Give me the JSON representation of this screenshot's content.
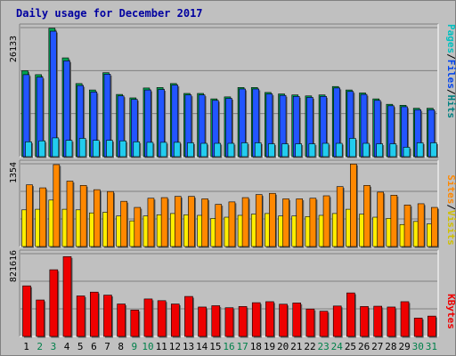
{
  "title": "Daily usage for December 2017",
  "colors": {
    "pages": "#0044ee",
    "files": "#2255ff",
    "hits": "#22ccee",
    "sites": "#ff8800",
    "visits": "#ffee00",
    "kbytes": "#ee0000",
    "weekend_label": "#00804a",
    "weekday_label": "#000000"
  },
  "legend": {
    "top": [
      {
        "text": "Hits",
        "color": "#008080"
      },
      {
        "text": "/",
        "color": "#000000"
      },
      {
        "text": "Files",
        "color": "#0044ee"
      },
      {
        "text": "/",
        "color": "#000000"
      },
      {
        "text": "Pages",
        "color": "#00c0c0"
      }
    ],
    "middle": [
      {
        "text": "Visits",
        "color": "#d0c000"
      },
      {
        "text": "/",
        "color": "#000000"
      },
      {
        "text": "Sites",
        "color": "#ff8800"
      }
    ],
    "bottom": [
      {
        "text": "KBytes",
        "color": "#ee0000"
      }
    ]
  },
  "chart_data": [
    {
      "type": "bar",
      "panel": "hits-files-pages",
      "y_max_label": "26133",
      "ylim": [
        0,
        26133
      ],
      "categories": [
        "1",
        "2",
        "3",
        "4",
        "5",
        "6",
        "7",
        "8",
        "9",
        "10",
        "11",
        "12",
        "13",
        "14",
        "15",
        "16",
        "17",
        "18",
        "19",
        "20",
        "21",
        "22",
        "23",
        "24",
        "25",
        "26",
        "27",
        "28",
        "29",
        "30",
        "31"
      ],
      "weekend": [
        false,
        true,
        true,
        false,
        false,
        false,
        false,
        false,
        true,
        true,
        false,
        false,
        false,
        false,
        false,
        true,
        true,
        false,
        false,
        false,
        false,
        false,
        true,
        true,
        false,
        false,
        false,
        false,
        false,
        true,
        true
      ],
      "series": [
        {
          "key": "hits",
          "values": [
            17400,
            16600,
            26000,
            20000,
            14800,
            13500,
            17000,
            12600,
            11900,
            13900,
            14000,
            14800,
            12800,
            12800,
            11700,
            12100,
            14000,
            14000,
            13000,
            12700,
            12500,
            12300,
            12500,
            14200,
            13500,
            12900,
            11700,
            10600,
            10400,
            9800,
            9800
          ]
        },
        {
          "key": "files",
          "values": [
            16600,
            16100,
            25400,
            19400,
            14400,
            13100,
            16700,
            12300,
            11600,
            13500,
            13600,
            14500,
            12500,
            12500,
            11400,
            11800,
            13700,
            13700,
            12700,
            12400,
            12200,
            12000,
            12200,
            13900,
            13200,
            12600,
            11400,
            10300,
            10100,
            9500,
            9500
          ]
        },
        {
          "key": "pages",
          "values": [
            3000,
            3200,
            3800,
            3300,
            3700,
            3300,
            3300,
            3200,
            3000,
            2900,
            2900,
            2900,
            2800,
            2700,
            2700,
            2700,
            2800,
            2800,
            2600,
            2600,
            2600,
            2600,
            2700,
            2700,
            3700,
            2700,
            2600,
            2600,
            1900,
            2800,
            2800
          ]
        }
      ]
    },
    {
      "type": "bar",
      "panel": "visits-sites",
      "y_max_label": "1354",
      "ylim": [
        0,
        1354
      ],
      "categories": [
        "1",
        "2",
        "3",
        "4",
        "5",
        "6",
        "7",
        "8",
        "9",
        "10",
        "11",
        "12",
        "13",
        "14",
        "15",
        "16",
        "17",
        "18",
        "19",
        "20",
        "21",
        "22",
        "23",
        "24",
        "25",
        "26",
        "27",
        "28",
        "29",
        "30",
        "31"
      ],
      "series": [
        {
          "key": "sites",
          "values": [
            1010,
            960,
            1340,
            1070,
            1000,
            930,
            900,
            740,
            640,
            790,
            800,
            820,
            820,
            780,
            690,
            730,
            800,
            850,
            870,
            780,
            780,
            790,
            830,
            980,
            1350,
            1000,
            890,
            840,
            680,
            700,
            640
          ]
        },
        {
          "key": "visits",
          "values": [
            600,
            610,
            760,
            610,
            600,
            550,
            560,
            500,
            420,
            500,
            520,
            540,
            520,
            510,
            460,
            480,
            510,
            530,
            540,
            500,
            500,
            490,
            510,
            540,
            610,
            530,
            480,
            460,
            360,
            410,
            370
          ]
        }
      ]
    },
    {
      "type": "bar",
      "panel": "kbytes",
      "y_max_label": "821616",
      "ylim": [
        0,
        821616
      ],
      "categories": [
        "1",
        "2",
        "3",
        "4",
        "5",
        "6",
        "7",
        "8",
        "9",
        "10",
        "11",
        "12",
        "13",
        "14",
        "15",
        "16",
        "17",
        "18",
        "19",
        "20",
        "21",
        "22",
        "23",
        "24",
        "25",
        "26",
        "27",
        "28",
        "29",
        "30",
        "31"
      ],
      "series": [
        {
          "key": "kbytes",
          "values": [
            502000,
            362000,
            662000,
            792000,
            402000,
            440000,
            410000,
            322000,
            262000,
            372000,
            355000,
            322000,
            397000,
            292000,
            305000,
            285000,
            297000,
            335000,
            345000,
            320000,
            332000,
            272000,
            250000,
            302000,
            432000,
            297000,
            300000,
            292000,
            345000,
            182000,
            202000
          ]
        }
      ]
    }
  ]
}
